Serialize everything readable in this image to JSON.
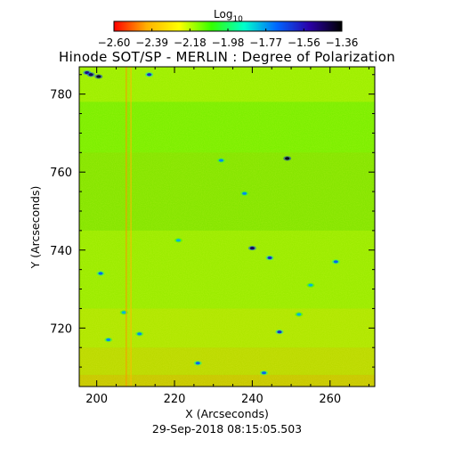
{
  "chart_data": {
    "type": "heatmap",
    "title": "Hinode SOT/SP - MERLIN : Degree of Polarization",
    "xlabel": "X (Arcseconds)",
    "ylabel": "Y (Arcseconds)",
    "date": "29-Sep-2018 08:15:05.503",
    "xlim": [
      195.5,
      271.5
    ],
    "ylim": [
      705,
      787
    ],
    "x_ticks": [
      200,
      220,
      240,
      260
    ],
    "y_ticks": [
      720,
      740,
      760,
      780
    ],
    "x_tick_labels": [
      "200",
      "220",
      "240",
      "260"
    ],
    "y_tick_labels": [
      "720",
      "740",
      "760",
      "780"
    ],
    "colorbar": {
      "label_main": "Log",
      "label_sub": "10",
      "range": [
        -2.6,
        -1.36
      ],
      "tick_labels": [
        "−2.60",
        "−2.39",
        "−2.18",
        "−1.98",
        "−1.77",
        "−1.56",
        "−1.36"
      ],
      "colormap": [
        "#ff0000",
        "#ffb000",
        "#ffff00",
        "#33ff00",
        "#00ffcc",
        "#0066ff",
        "#2b00a8",
        "#000000"
      ]
    },
    "background": "#86e600",
    "features": [
      {
        "x": 197.5,
        "y": 785.5,
        "value": -1.5
      },
      {
        "x": 198.5,
        "y": 785.0,
        "value": -1.45
      },
      {
        "x": 200.5,
        "y": 784.5,
        "value": -1.4
      },
      {
        "x": 213.5,
        "y": 785.0,
        "value": -1.6
      },
      {
        "x": 249.0,
        "y": 763.5,
        "value": -1.38
      },
      {
        "x": 240.0,
        "y": 740.5,
        "value": -1.45
      },
      {
        "x": 201.0,
        "y": 734.0,
        "value": -1.7
      },
      {
        "x": 232.0,
        "y": 763.0,
        "value": -1.75
      },
      {
        "x": 238.0,
        "y": 754.5,
        "value": -1.75
      },
      {
        "x": 261.5,
        "y": 737.0,
        "value": -1.7
      },
      {
        "x": 226.0,
        "y": 711.0,
        "value": -1.7
      },
      {
        "x": 247.0,
        "y": 719.0,
        "value": -1.6
      },
      {
        "x": 252.0,
        "y": 723.5,
        "value": -1.8
      },
      {
        "x": 203.0,
        "y": 717.0,
        "value": -1.75
      },
      {
        "x": 207.0,
        "y": 724.0,
        "value": -1.8
      },
      {
        "x": 244.5,
        "y": 738.0,
        "value": -1.6
      },
      {
        "x": 211.0,
        "y": 718.5,
        "value": -1.75
      },
      {
        "x": 243.0,
        "y": 708.5,
        "value": -1.7
      },
      {
        "x": 221.0,
        "y": 742.5,
        "value": -1.8
      },
      {
        "x": 255.0,
        "y": 731.0,
        "value": -1.8
      }
    ],
    "vertical_stripes": [
      {
        "x": 207.6,
        "value": -2.45
      },
      {
        "x": 208.8,
        "value": -2.4
      }
    ]
  }
}
